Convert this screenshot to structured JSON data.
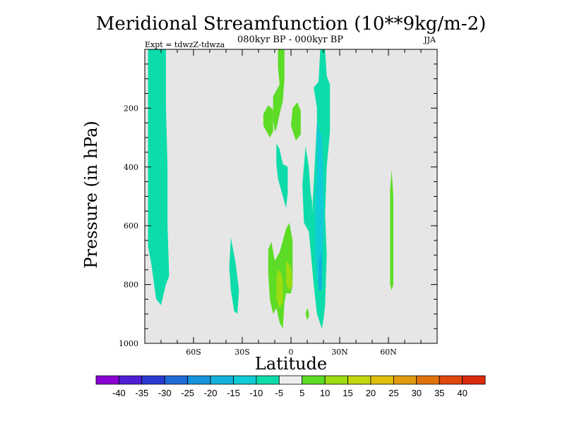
{
  "chart_data": {
    "type": "heatmap",
    "title": "Meridional Streamfunction (10**9kg/m-2)",
    "subtitle": "080kyr BP - 000kyr BP",
    "expt_label": "Expt = tdwzZ-tdwza",
    "season_label": "JJA",
    "xlabel": "Latitude",
    "ylabel": "Pressure (in hPa)",
    "xlim": [
      -90,
      90
    ],
    "ylim": [
      0,
      1000
    ],
    "y_inverted": true,
    "x_ticks": [
      {
        "value": -60,
        "label": "60S"
      },
      {
        "value": -30,
        "label": "30S"
      },
      {
        "value": 0,
        "label": "0"
      },
      {
        "value": 30,
        "label": "30N"
      },
      {
        "value": 60,
        "label": "60N"
      }
    ],
    "y_ticks": [
      {
        "value": 200,
        "label": "200"
      },
      {
        "value": 400,
        "label": "400"
      },
      {
        "value": 600,
        "label": "600"
      },
      {
        "value": 800,
        "label": "800"
      },
      {
        "value": 1000,
        "label": "1000"
      }
    ],
    "background_color": "#e6e6e6",
    "colorbar": {
      "levels": [
        "-40",
        "-35",
        "-30",
        "-25",
        "-20",
        "-15",
        "-10",
        "-5",
        "5",
        "10",
        "15",
        "20",
        "25",
        "30",
        "35",
        "40"
      ],
      "colors": [
        "#8b00d4",
        "#4e1ed6",
        "#2a3bd4",
        "#1f6bd8",
        "#1694dc",
        "#10b2dc",
        "#10ccd6",
        "#0ddcaa",
        "#eeeeee",
        "#5ddc26",
        "#9cdc10",
        "#c4d60c",
        "#e0be0c",
        "#e09a0c",
        "#e0720c",
        "#e0480c",
        "#dc2a0c"
      ]
    },
    "regions": [
      {
        "level": -10,
        "color": "#0ddcaa",
        "points": [
          [
            -88,
            0
          ],
          [
            -77,
            0
          ],
          [
            -77,
            190
          ],
          [
            -76,
            400
          ],
          [
            -76,
            600
          ],
          [
            -75,
            770
          ],
          [
            -77,
            800
          ],
          [
            -80,
            870
          ],
          [
            -83,
            850
          ],
          [
            -86,
            730
          ],
          [
            -88,
            670
          ]
        ]
      },
      {
        "level": -10,
        "color": "#0ddcaa",
        "points": [
          [
            -37,
            640
          ],
          [
            -34,
            730
          ],
          [
            -32,
            820
          ],
          [
            -33,
            900
          ],
          [
            -35,
            890
          ],
          [
            -37,
            820
          ],
          [
            -38,
            740
          ]
        ]
      },
      {
        "level": 5,
        "color": "#5ddc26",
        "points": [
          [
            -8,
            0
          ],
          [
            -4,
            0
          ],
          [
            -4,
            100
          ],
          [
            -5,
            175
          ],
          [
            -7,
            220
          ],
          [
            -9,
            270
          ],
          [
            -10,
            280
          ],
          [
            -11,
            240
          ],
          [
            -11,
            160
          ],
          [
            -7,
            120
          ],
          [
            -8,
            60
          ]
        ]
      },
      {
        "level": 5,
        "color": "#5ddc26",
        "points": [
          [
            -17,
            220
          ],
          [
            -14,
            190
          ],
          [
            -11,
            205
          ],
          [
            -11,
            280
          ],
          [
            -13,
            300
          ],
          [
            -17,
            260
          ]
        ]
      },
      {
        "level": 5,
        "color": "#5ddc26",
        "points": [
          [
            1,
            200
          ],
          [
            4,
            180
          ],
          [
            6,
            210
          ],
          [
            6,
            290
          ],
          [
            3,
            310
          ],
          [
            0,
            260
          ]
        ]
      },
      {
        "level": -10,
        "color": "#0ddcaa",
        "points": [
          [
            -9,
            320
          ],
          [
            -7,
            340
          ],
          [
            -5,
            390
          ],
          [
            -2,
            400
          ],
          [
            -2,
            490
          ],
          [
            -3,
            540
          ],
          [
            -5,
            500
          ],
          [
            -8,
            440
          ],
          [
            -9,
            390
          ]
        ]
      },
      {
        "level": -10,
        "color": "#0ddcaa",
        "points": [
          [
            9,
            330
          ],
          [
            11,
            400
          ],
          [
            12,
            480
          ],
          [
            13,
            520
          ],
          [
            13,
            560
          ],
          [
            16,
            250
          ],
          [
            16,
            200
          ],
          [
            14,
            130
          ],
          [
            17,
            110
          ],
          [
            18,
            0
          ],
          [
            21,
            0
          ],
          [
            22,
            90
          ],
          [
            24,
            120
          ],
          [
            24,
            280
          ],
          [
            22,
            400
          ],
          [
            21,
            560
          ],
          [
            22,
            700
          ],
          [
            21,
            870
          ],
          [
            20,
            920
          ],
          [
            19,
            950
          ],
          [
            16,
            900
          ],
          [
            14,
            800
          ],
          [
            11,
            620
          ],
          [
            8,
            590
          ],
          [
            7,
            460
          ]
        ]
      },
      {
        "level": -15,
        "color": "#10ccd6",
        "points": [
          [
            16,
            250
          ],
          [
            19,
            300
          ],
          [
            20,
            450
          ],
          [
            20,
            620
          ],
          [
            19,
            790
          ],
          [
            18,
            820
          ],
          [
            16,
            780
          ],
          [
            15,
            700
          ],
          [
            15,
            530
          ],
          [
            16,
            400
          ]
        ]
      },
      {
        "level": -20,
        "color": "#10b2dc",
        "points": [
          [
            17,
            720
          ],
          [
            19,
            690
          ],
          [
            19,
            820
          ],
          [
            17,
            820
          ]
        ]
      },
      {
        "level": 5,
        "color": "#5ddc26",
        "points": [
          [
            -14,
            680
          ],
          [
            -12,
            655
          ],
          [
            -10,
            720
          ],
          [
            -7,
            690
          ],
          [
            -5,
            650
          ],
          [
            -3,
            610
          ],
          [
            -1,
            590
          ],
          [
            0,
            620
          ],
          [
            1,
            650
          ],
          [
            1,
            800
          ],
          [
            0,
            830
          ],
          [
            -3,
            830
          ],
          [
            -4,
            860
          ],
          [
            -5,
            950
          ],
          [
            -7,
            930
          ],
          [
            -9,
            880
          ],
          [
            -11,
            900
          ],
          [
            -13,
            850
          ],
          [
            -14,
            760
          ]
        ]
      },
      {
        "level": 10,
        "color": "#9cdc10",
        "points": [
          [
            -8,
            750
          ],
          [
            -6,
            760
          ],
          [
            -5,
            790
          ],
          [
            -5,
            860
          ],
          [
            -7,
            880
          ],
          [
            -9,
            850
          ],
          [
            -9,
            780
          ]
        ]
      },
      {
        "level": 10,
        "color": "#9cdc10",
        "points": [
          [
            -3,
            720
          ],
          [
            0,
            740
          ],
          [
            1,
            800
          ],
          [
            -1,
            820
          ],
          [
            -3,
            800
          ]
        ]
      },
      {
        "level": 5,
        "color": "#5ddc26",
        "points": [
          [
            10,
            880
          ],
          [
            11,
            895
          ],
          [
            11,
            910
          ],
          [
            10,
            920
          ],
          [
            9,
            900
          ]
        ]
      },
      {
        "level": 5,
        "color": "#5ddc26",
        "points": [
          [
            62,
            410
          ],
          [
            63,
            500
          ],
          [
            63,
            800
          ],
          [
            62,
            820
          ],
          [
            61,
            800
          ],
          [
            61,
            480
          ]
        ]
      }
    ]
  }
}
